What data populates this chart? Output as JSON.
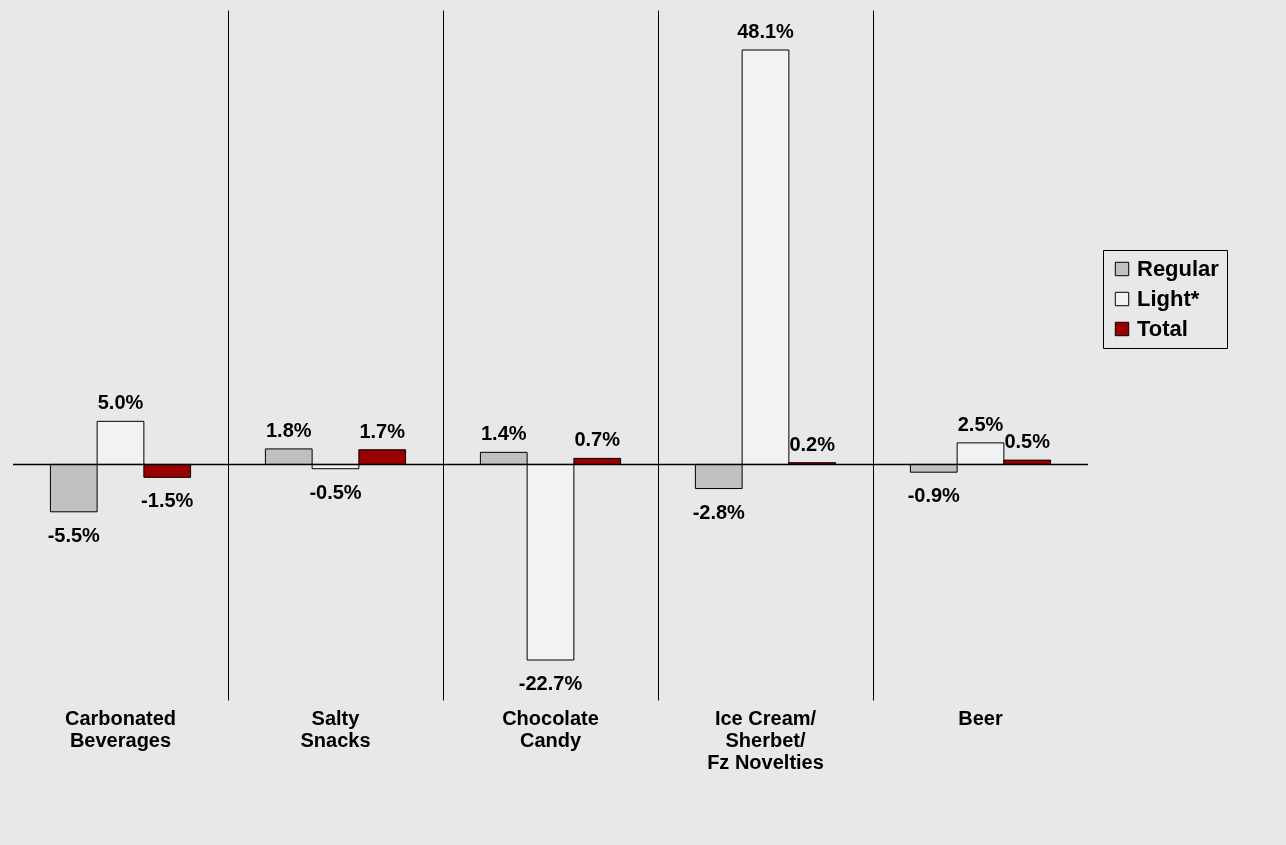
{
  "chart_data": {
    "type": "bar",
    "categories": [
      "Carbonated\nBeverages",
      "Salty\nSnacks",
      "Chocolate\nCandy",
      "Ice Cream/\nSherbet/\nFz Novelties",
      "Beer"
    ],
    "series": [
      {
        "name": "Regular",
        "color": "#c0c0c0",
        "values": [
          -5.5,
          1.8,
          1.4,
          -2.8,
          -0.9
        ],
        "value_labels": [
          "-5.5%",
          "1.8%",
          "1.4%",
          "-2.8%",
          "-0.9%"
        ]
      },
      {
        "name": "Light*",
        "color": "#f2f2f2",
        "values": [
          5.0,
          -0.5,
          -22.7,
          48.1,
          2.5
        ],
        "value_labels": [
          "5.0%",
          "-0.5%",
          "-22.7%",
          "48.1%",
          "2.5%"
        ]
      },
      {
        "name": "Total",
        "color": "#990000",
        "values": [
          -1.5,
          1.7,
          0.7,
          0.2,
          0.5
        ],
        "value_labels": [
          "-1.5%",
          "1.7%",
          "0.7%",
          "0.2%",
          "0.5%"
        ]
      }
    ],
    "grid": "x",
    "legend": "right"
  }
}
